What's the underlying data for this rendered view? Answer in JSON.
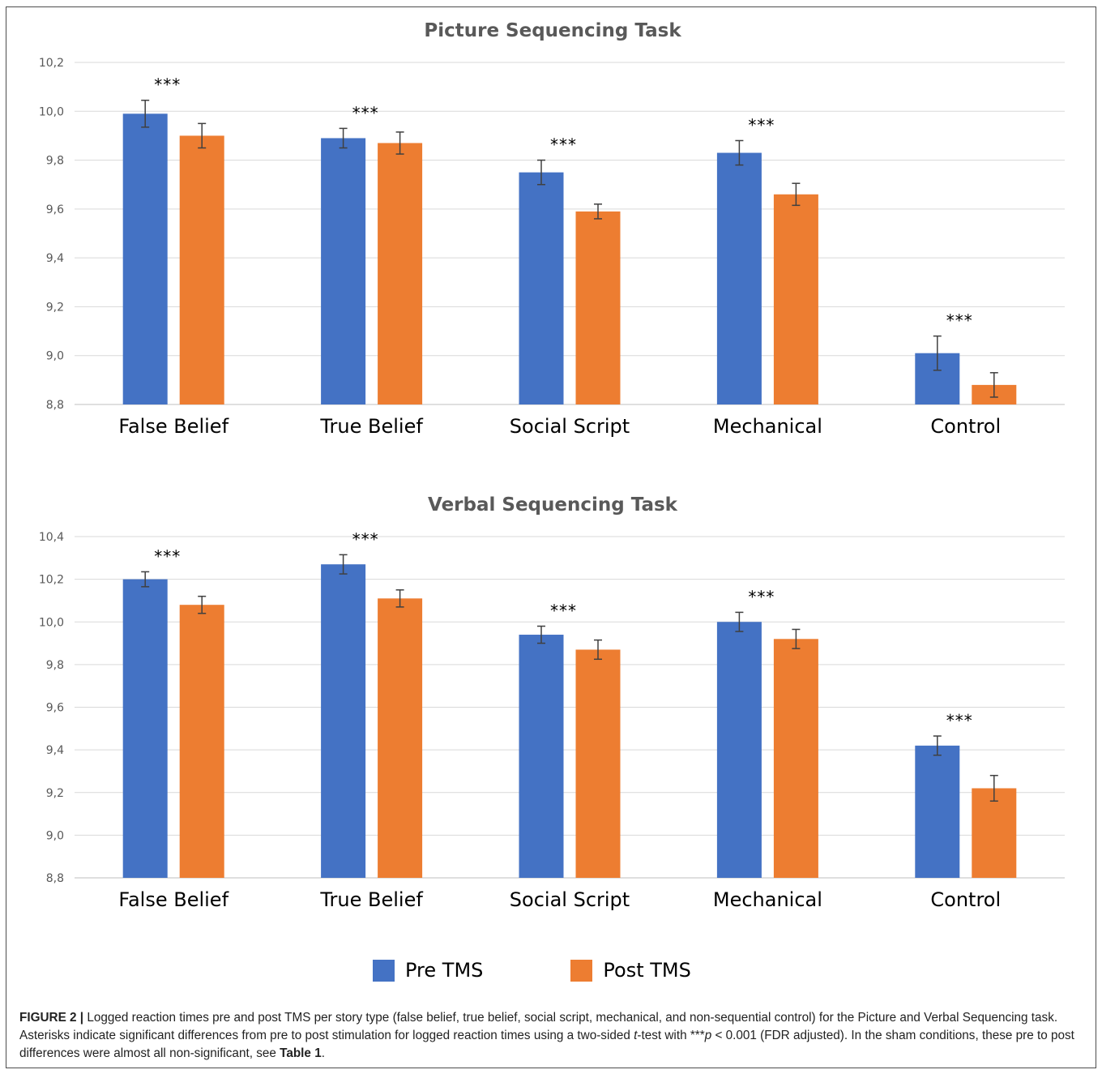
{
  "colors": {
    "pre": "#4472C4",
    "post": "#ED7D31",
    "grid": "#D9D9D9",
    "axis": "#BFBFBF",
    "error_bar": "#404040"
  },
  "legend": {
    "pre_label": "Pre TMS",
    "post_label": "Post TMS"
  },
  "caption": {
    "prefix": "FIGURE 2 |",
    "text1": " Logged reaction times pre and post TMS per story type (false belief, true belief, social script, mechanical, and non-sequential control) for the Picture and Verbal Sequencing task. Asterisks indicate significant differences from pre to post stimulation for logged reaction times using a two-sided ",
    "t_italic": "t",
    "text2": "-test with ***",
    "p_italic": "p",
    "text3": " < 0.001 (FDR adjusted). In the sham conditions, these pre to post differences were almost all non-significant, see ",
    "table_ref": "Table 1",
    "text4": "."
  },
  "chart_data": [
    {
      "type": "bar",
      "title": "Picture Sequencing Task",
      "categories": [
        "False Belief",
        "True Belief",
        "Social Script",
        "Mechanical",
        "Control"
      ],
      "yticks": [
        "8,8",
        "9,0",
        "9,2",
        "9,4",
        "9,6",
        "9,8",
        "10,0",
        "10,2"
      ],
      "ylim": [
        8.8,
        10.2
      ],
      "grid": true,
      "series": [
        {
          "name": "Pre TMS",
          "values": [
            9.99,
            9.89,
            9.75,
            9.83,
            9.01
          ],
          "errors": [
            0.055,
            0.04,
            0.05,
            0.05,
            0.07
          ]
        },
        {
          "name": "Post TMS",
          "values": [
            9.9,
            9.87,
            9.59,
            9.66,
            8.88
          ],
          "errors": [
            0.05,
            0.045,
            0.03,
            0.045,
            0.05
          ]
        }
      ],
      "significance": [
        "***",
        "***",
        "***",
        "***",
        "***"
      ]
    },
    {
      "type": "bar",
      "title": "Verbal Sequencing Task",
      "categories": [
        "False Belief",
        "True Belief",
        "Social Script",
        "Mechanical",
        "Control"
      ],
      "yticks": [
        "8,8",
        "9,0",
        "9,2",
        "9,4",
        "9,6",
        "9,8",
        "10,0",
        "10,2",
        "10,4"
      ],
      "ylim": [
        8.8,
        10.4
      ],
      "grid": true,
      "series": [
        {
          "name": "Pre TMS",
          "values": [
            10.2,
            10.27,
            9.94,
            10.0,
            9.42
          ],
          "errors": [
            0.035,
            0.045,
            0.04,
            0.045,
            0.045
          ]
        },
        {
          "name": "Post TMS",
          "values": [
            10.08,
            10.11,
            9.87,
            9.92,
            9.22
          ],
          "errors": [
            0.04,
            0.04,
            0.045,
            0.045,
            0.06
          ]
        }
      ],
      "significance": [
        "***",
        "***",
        "***",
        "***",
        "***"
      ]
    }
  ]
}
